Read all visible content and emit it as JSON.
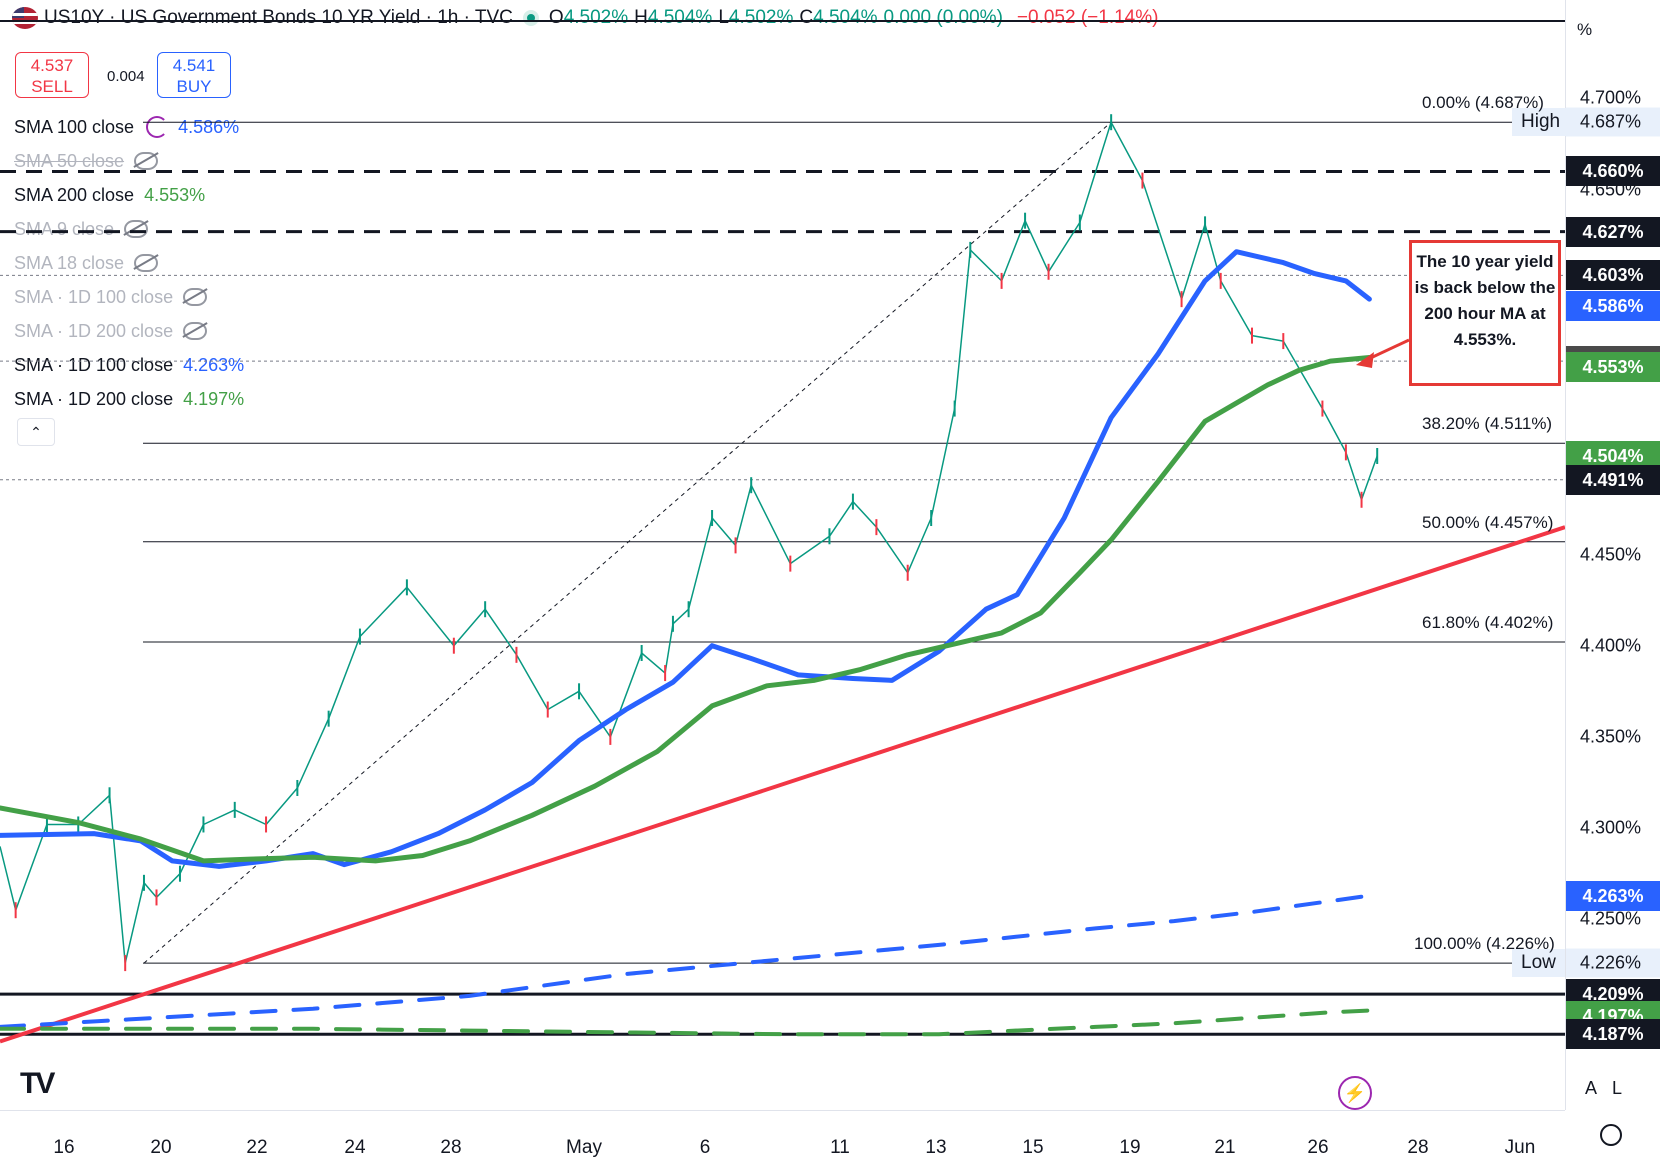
{
  "header": {
    "title": "US10Y · US Government Bonds 10 YR Yield · 1h · TVC",
    "open_label": "O",
    "open": "4.502%",
    "high_label": "H",
    "high": "4.504%",
    "low_label": "L",
    "low": "4.502%",
    "close_label": "C",
    "close": "4.504%",
    "change": "0.000 (0.00%)",
    "change_day": "−0.052 (−1.14%)"
  },
  "trade": {
    "sell_price": "4.537",
    "sell_label": "SELL",
    "spread": "0.004",
    "buy_price": "4.541",
    "buy_label": "BUY"
  },
  "legend": [
    {
      "label": "SMA 100 close",
      "value": "4.586%",
      "color": "#2962ff",
      "hidden": false
    },
    {
      "label": "SMA 50 close",
      "value": "",
      "color": "#b2b5be",
      "hidden": true
    },
    {
      "label": "SMA 200 close",
      "value": "4.553%",
      "color": "#43a047",
      "hidden": false
    },
    {
      "label": "SMA 9 close",
      "value": "",
      "color": "#b2b5be",
      "hidden": true
    },
    {
      "label": "SMA 18 close",
      "value": "",
      "color": "#b2b5be",
      "hidden": true
    },
    {
      "label": "SMA · 1D 100 close",
      "value": "",
      "color": "#b2b5be",
      "hidden": true
    },
    {
      "label": "SMA · 1D 200 close",
      "value": "",
      "color": "#b2b5be",
      "hidden": true
    },
    {
      "label": "SMA · 1D 100 close",
      "value": "4.263%",
      "color": "#2962ff",
      "hidden": false
    },
    {
      "label": "SMA · 1D 200 close",
      "value": "4.197%",
      "color": "#43a047",
      "hidden": false
    }
  ],
  "annotation": "The 10 year yield is back below the 200 hour MA at 4.553%.",
  "icons": {
    "logo": "TV",
    "collapse": "⌃",
    "bolt": "⚡",
    "auto": "A",
    "log": "L"
  },
  "chart_data": {
    "type": "line",
    "ylim": [
      4.18,
      4.72
    ],
    "unit_symbol": "%",
    "x_tick_labels": [
      "16",
      "20",
      "22",
      "24",
      "28",
      "May",
      "6",
      "11",
      "13",
      "15",
      "19",
      "21",
      "26",
      "28",
      "Jun"
    ],
    "y_ticks": [
      4.25,
      4.3,
      4.35,
      4.4,
      4.45,
      4.5,
      4.55,
      4.6,
      4.65,
      4.7
    ],
    "y_tick_labels": [
      "4.250%",
      "4.300%",
      "4.350%",
      "4.400%",
      "4.450%",
      "4.500%",
      "4.550%",
      "4.600%",
      "4.650%",
      "4.700%"
    ],
    "price_tags": [
      {
        "value": 4.687,
        "label": "4.687%",
        "style": "plain",
        "side_label": "High"
      },
      {
        "value": 4.66,
        "label": "4.660%",
        "style": "black"
      },
      {
        "value": 4.627,
        "label": "4.627%",
        "style": "black"
      },
      {
        "value": 4.603,
        "label": "4.603%",
        "style": "black"
      },
      {
        "value": 4.586,
        "label": "4.586%",
        "style": "blue"
      },
      {
        "value": 4.556,
        "label": "4.556%",
        "style": "gray"
      },
      {
        "value": 4.553,
        "label": "4.553%",
        "style": "green"
      },
      {
        "value": 4.504,
        "label": "4.504%",
        "style": "green"
      },
      {
        "value": 4.491,
        "label": "4.491%",
        "style": "black"
      },
      {
        "value": 4.263,
        "label": "4.263%",
        "style": "blue"
      },
      {
        "value": 4.226,
        "label": "4.226%",
        "style": "plain",
        "side_label": "Low"
      },
      {
        "value": 4.209,
        "label": "4.209%",
        "style": "black"
      },
      {
        "value": 4.197,
        "label": "4.197%",
        "style": "green"
      },
      {
        "value": 4.187,
        "label": "4.187%",
        "style": "black"
      }
    ],
    "fibonacci": [
      {
        "level": "0.00%",
        "value": 4.687,
        "label": "0.00% (4.687%)"
      },
      {
        "level": "38.20%",
        "value": 4.511,
        "label": "38.20% (4.511%)"
      },
      {
        "level": "50.00%",
        "value": 4.457,
        "label": "50.00% (4.457%)"
      },
      {
        "level": "61.80%",
        "value": 4.402,
        "label": "61.80% (4.402%)"
      },
      {
        "level": "100.00%",
        "value": 4.226,
        "label": "100.00% (4.226%)"
      }
    ],
    "horizontal_levels": [
      {
        "value": 4.66,
        "style": "dashed-black"
      },
      {
        "value": 4.627,
        "style": "dashed-black"
      },
      {
        "value": 4.603,
        "style": "dotted-gray"
      },
      {
        "value": 4.556,
        "style": "dotted-gray"
      },
      {
        "value": 4.491,
        "style": "dotted-gray"
      },
      {
        "value": 4.209,
        "style": "solid-black"
      },
      {
        "value": 4.187,
        "style": "solid-black"
      }
    ],
    "trendline": {
      "color": "#f23645",
      "from": [
        0,
        4.183
      ],
      "to": [
        1.0,
        4.465
      ]
    },
    "x_domain": [
      0,
      1
    ],
    "series": [
      {
        "name": "SMA 100 close",
        "color": "#2962ff",
        "x": [
          0.0,
          0.06,
          0.09,
          0.11,
          0.14,
          0.17,
          0.2,
          0.22,
          0.25,
          0.28,
          0.31,
          0.34,
          0.37,
          0.4,
          0.43,
          0.455,
          0.48,
          0.51,
          0.545,
          0.57,
          0.6,
          0.63,
          0.65,
          0.68,
          0.71,
          0.74,
          0.77,
          0.79,
          0.82,
          0.84,
          0.86,
          0.875
        ],
        "values": [
          4.296,
          4.297,
          4.293,
          4.282,
          4.279,
          4.282,
          4.286,
          4.28,
          4.287,
          4.297,
          4.31,
          4.325,
          4.348,
          4.365,
          4.38,
          4.4,
          4.393,
          4.384,
          4.382,
          4.381,
          4.397,
          4.42,
          4.428,
          4.47,
          4.525,
          4.56,
          4.6,
          4.616,
          4.61,
          4.604,
          4.6,
          4.59
        ]
      },
      {
        "name": "SMA 200 close",
        "color": "#43a047",
        "x": [
          0.0,
          0.05,
          0.09,
          0.13,
          0.16,
          0.2,
          0.24,
          0.27,
          0.3,
          0.34,
          0.38,
          0.42,
          0.455,
          0.49,
          0.52,
          0.55,
          0.58,
          0.61,
          0.64,
          0.665,
          0.69,
          0.71,
          0.74,
          0.77,
          0.79,
          0.81,
          0.83,
          0.85,
          0.875
        ],
        "values": [
          4.311,
          4.303,
          4.294,
          4.282,
          4.283,
          4.284,
          4.282,
          4.285,
          4.293,
          4.307,
          4.323,
          4.342,
          4.367,
          4.378,
          4.381,
          4.387,
          4.395,
          4.401,
          4.407,
          4.418,
          4.44,
          4.458,
          4.49,
          4.523,
          4.533,
          4.543,
          4.551,
          4.556,
          4.558
        ]
      },
      {
        "name": "SMA · 1D 100 close",
        "color": "#2962ff",
        "dashed": true,
        "x": [
          0.0,
          0.1,
          0.2,
          0.3,
          0.4,
          0.5,
          0.6,
          0.7,
          0.75,
          0.8,
          0.85,
          0.875
        ],
        "values": [
          4.191,
          4.196,
          4.201,
          4.208,
          4.22,
          4.228,
          4.236,
          4.245,
          4.249,
          4.254,
          4.26,
          4.263
        ]
      },
      {
        "name": "SMA · 1D 200 close",
        "color": "#43a047",
        "dashed": true,
        "x": [
          0.0,
          0.1,
          0.2,
          0.3,
          0.4,
          0.5,
          0.6,
          0.7,
          0.75,
          0.8,
          0.85,
          0.875
        ],
        "values": [
          4.19,
          4.19,
          4.19,
          4.189,
          4.188,
          4.187,
          4.187,
          4.191,
          4.193,
          4.196,
          4.199,
          4.2
        ]
      }
    ],
    "price_path": {
      "x": [
        0.0,
        0.01,
        0.03,
        0.05,
        0.07,
        0.08,
        0.092,
        0.1,
        0.115,
        0.13,
        0.15,
        0.17,
        0.19,
        0.21,
        0.23,
        0.26,
        0.29,
        0.31,
        0.33,
        0.35,
        0.37,
        0.39,
        0.41,
        0.425,
        0.43,
        0.44,
        0.455,
        0.47,
        0.48,
        0.505,
        0.53,
        0.545,
        0.56,
        0.58,
        0.595,
        0.61,
        0.62,
        0.64,
        0.655,
        0.67,
        0.69,
        0.71,
        0.73,
        0.755,
        0.77,
        0.78,
        0.8,
        0.82,
        0.845,
        0.86,
        0.87,
        0.88
      ],
      "values": [
        4.29,
        4.255,
        4.302,
        4.302,
        4.318,
        4.226,
        4.27,
        4.262,
        4.275,
        4.302,
        4.31,
        4.302,
        4.322,
        4.36,
        4.405,
        4.432,
        4.4,
        4.42,
        4.395,
        4.365,
        4.375,
        4.35,
        4.396,
        4.385,
        4.412,
        4.42,
        4.47,
        4.455,
        4.488,
        4.445,
        4.46,
        4.479,
        4.465,
        4.44,
        4.47,
        4.53,
        4.617,
        4.6,
        4.633,
        4.605,
        4.632,
        4.687,
        4.655,
        4.59,
        4.631,
        4.6,
        4.57,
        4.567,
        4.53,
        4.506,
        4.48,
        4.504
      ]
    }
  }
}
